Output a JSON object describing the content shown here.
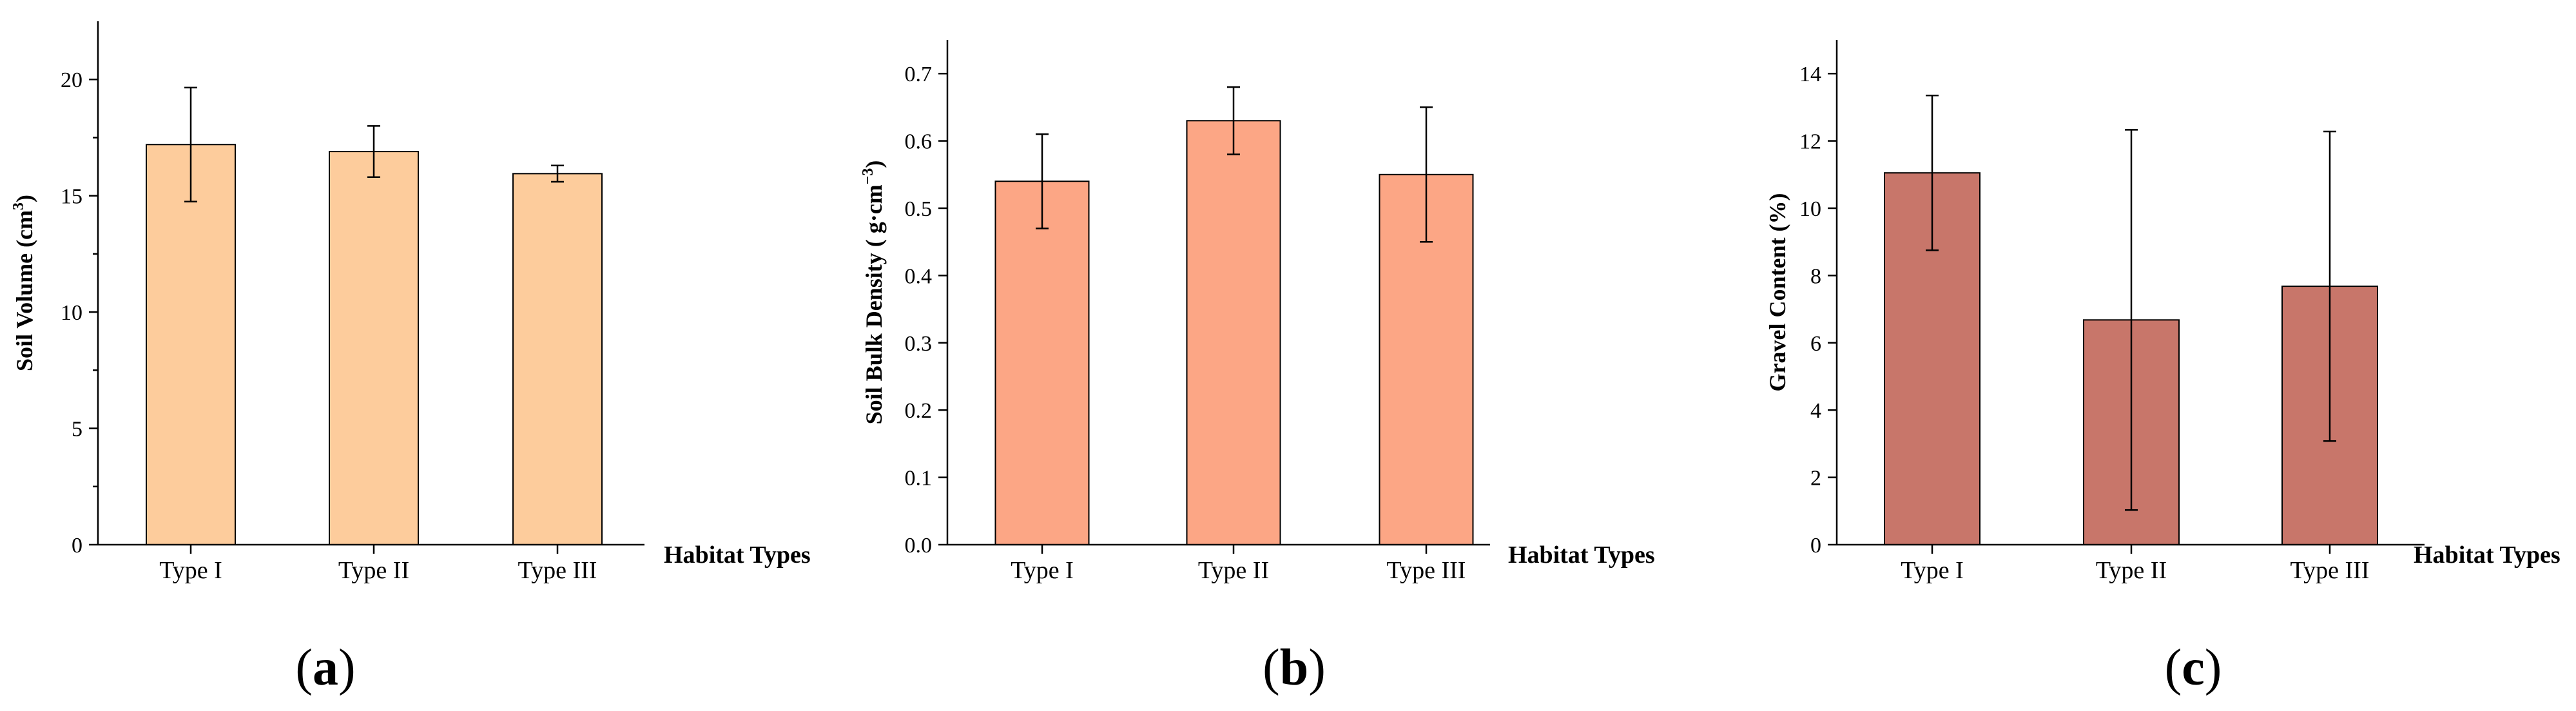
{
  "chart_data": [
    {
      "type": "bar",
      "panel_label": "a",
      "categories": [
        "Type I",
        "Type II",
        "Type III"
      ],
      "values": [
        17.2,
        16.9,
        15.95
      ],
      "errors": [
        2.45,
        1.1,
        0.35
      ],
      "ylabel_main": "Soil Volume (cm",
      "ylabel_sup": "3",
      "ylabel_tail": ")",
      "xlabel": "Habitat Types",
      "ylim": [
        0,
        22.5
      ],
      "yticks": [
        0,
        5,
        10,
        15,
        20
      ],
      "ytick_labels": [
        "0",
        "5",
        "10",
        "15",
        "20"
      ],
      "color": "#FDCC9C"
    },
    {
      "type": "bar",
      "panel_label": "b",
      "categories": [
        "Type I",
        "Type II",
        "Type III"
      ],
      "values": [
        0.54,
        0.63,
        0.55
      ],
      "errors": [
        0.07,
        0.05,
        0.1
      ],
      "ylabel_main": "Soil Bulk Density ( g·cm",
      "ylabel_sup": "−3",
      "ylabel_tail": ")",
      "xlabel": "Habitat Types",
      "ylim": [
        0,
        0.75
      ],
      "yticks": [
        0,
        0.1,
        0.2,
        0.3,
        0.4,
        0.5,
        0.6,
        0.7
      ],
      "ytick_labels": [
        "0.0",
        "0.1",
        "0.2",
        "0.3",
        "0.4",
        "0.5",
        "0.6",
        "0.7"
      ],
      "color": "#FCA685"
    },
    {
      "type": "bar",
      "panel_label": "c",
      "categories": [
        "Type I",
        "Type II",
        "Type III"
      ],
      "values": [
        11.05,
        6.68,
        7.68
      ],
      "errors": [
        2.3,
        5.65,
        4.6
      ],
      "ylabel_main": "Gravel Content (%)",
      "ylabel_sup": "",
      "ylabel_tail": "",
      "xlabel": "Habitat Types",
      "ylim": [
        0,
        15
      ],
      "yticks": [
        0,
        2,
        4,
        6,
        8,
        10,
        12,
        14
      ],
      "ytick_labels": [
        "0",
        "2",
        "4",
        "6",
        "8",
        "10",
        "12",
        "14"
      ],
      "color": "#C8766A"
    }
  ]
}
